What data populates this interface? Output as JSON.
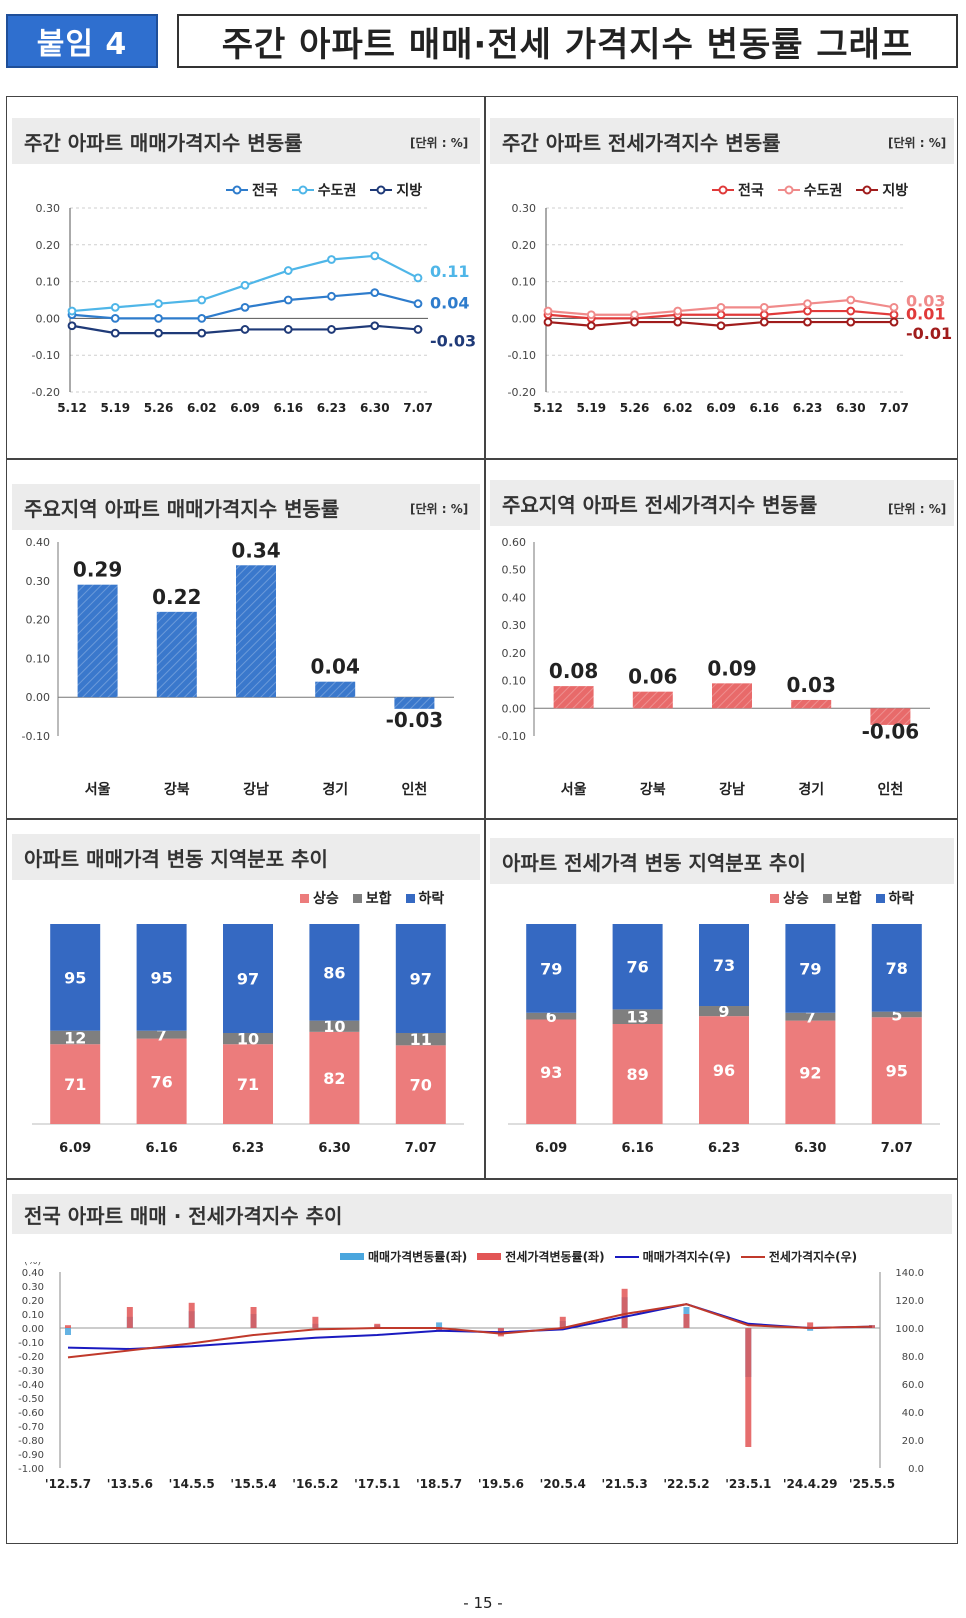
{
  "header": {
    "badge": "붙임 4",
    "title": "주간 아파트 매매·전세 가격지수 변동률 그래프"
  },
  "page_number": "- 15 -",
  "chart_data": [
    {
      "id": "weekly_sale",
      "type": "line",
      "title": "주간 아파트 매매가격지수 변동률",
      "unit": "[단위 : %]",
      "x": [
        "5.12",
        "5.19",
        "5.26",
        "6.02",
        "6.09",
        "6.16",
        "6.23",
        "6.30",
        "7.07"
      ],
      "ylim": [
        -0.2,
        0.3
      ],
      "yticks": [
        "0.30",
        "0.20",
        "0.10",
        "0.00",
        "-0.10",
        "-0.20"
      ],
      "series": [
        {
          "name": "전국",
          "color": "#2e7ccc",
          "values": [
            0.01,
            0.0,
            0.0,
            0.0,
            0.03,
            0.05,
            0.06,
            0.07,
            0.04
          ],
          "end_label": "0.04"
        },
        {
          "name": "수도권",
          "color": "#4fb6e8",
          "values": [
            0.02,
            0.03,
            0.04,
            0.05,
            0.09,
            0.13,
            0.16,
            0.17,
            0.11
          ],
          "end_label": "0.11"
        },
        {
          "name": "지방",
          "color": "#1f3a78",
          "values": [
            -0.02,
            -0.04,
            -0.04,
            -0.04,
            -0.03,
            -0.03,
            -0.03,
            -0.02,
            -0.03
          ],
          "end_label": "-0.03"
        }
      ]
    },
    {
      "id": "weekly_jeonse",
      "type": "line",
      "title": "주간 아파트 전세가격지수 변동률",
      "unit": "[단위 : %]",
      "x": [
        "5.12",
        "5.19",
        "5.26",
        "6.02",
        "6.09",
        "6.16",
        "6.23",
        "6.30",
        "7.07"
      ],
      "ylim": [
        -0.2,
        0.3
      ],
      "yticks": [
        "0.30",
        "0.20",
        "0.10",
        "0.00",
        "-0.10",
        "-0.20"
      ],
      "series": [
        {
          "name": "전국",
          "color": "#e03a3a",
          "values": [
            0.01,
            0.0,
            0.0,
            0.01,
            0.01,
            0.01,
            0.02,
            0.02,
            0.01
          ],
          "end_label": "0.01"
        },
        {
          "name": "수도권",
          "color": "#f08a8a",
          "values": [
            0.02,
            0.01,
            0.01,
            0.02,
            0.03,
            0.03,
            0.04,
            0.05,
            0.03
          ],
          "end_label": "0.03"
        },
        {
          "name": "지방",
          "color": "#a01c1c",
          "values": [
            -0.01,
            -0.02,
            -0.01,
            -0.01,
            -0.02,
            -0.01,
            -0.01,
            -0.01,
            -0.01
          ],
          "end_label": "-0.01"
        }
      ]
    },
    {
      "id": "region_sale",
      "type": "bar",
      "title": "주요지역 아파트 매매가격지수 변동률",
      "unit": "[단위 : %]",
      "categories": [
        "서울",
        "강북",
        "강남",
        "경기",
        "인천"
      ],
      "values": [
        0.29,
        0.22,
        0.34,
        0.04,
        -0.03
      ],
      "labels": [
        "0.29",
        "0.22",
        "0.34",
        "0.04",
        "-0.03"
      ],
      "ylim": [
        -0.1,
        0.4
      ],
      "yticks": [
        "0.40",
        "0.30",
        "0.20",
        "0.10",
        "0.00",
        "-0.10"
      ],
      "color": "#3a78cc"
    },
    {
      "id": "region_jeonse",
      "type": "bar",
      "title": "주요지역 아파트 전세가격지수 변동률",
      "unit": "[단위 : %]",
      "categories": [
        "서울",
        "강북",
        "강남",
        "경기",
        "인천"
      ],
      "values": [
        0.08,
        0.06,
        0.09,
        0.03,
        -0.06
      ],
      "labels": [
        "0.08",
        "0.06",
        "0.09",
        "0.03",
        "-0.06"
      ],
      "ylim": [
        -0.1,
        0.6
      ],
      "yticks": [
        "0.60",
        "0.50",
        "0.40",
        "0.30",
        "0.20",
        "0.10",
        "0.00",
        "-0.10"
      ],
      "color": "#e86a6a"
    },
    {
      "id": "dist_sale",
      "type": "bar",
      "stacked": true,
      "title": "아파트 매매가격 변동 지역분포 추이",
      "categories": [
        "6.09",
        "6.16",
        "6.23",
        "6.30",
        "7.07"
      ],
      "series": [
        {
          "name": "상승",
          "color": "#ec7c7c",
          "values": [
            71,
            76,
            71,
            82,
            70
          ]
        },
        {
          "name": "보합",
          "color": "#7f7f7f",
          "values": [
            12,
            7,
            10,
            10,
            11
          ]
        },
        {
          "name": "하락",
          "color": "#3569c2",
          "values": [
            95,
            95,
            97,
            86,
            97
          ]
        }
      ]
    },
    {
      "id": "dist_jeonse",
      "type": "bar",
      "stacked": true,
      "title": "아파트 전세가격 변동 지역분포 추이",
      "categories": [
        "6.09",
        "6.16",
        "6.23",
        "6.30",
        "7.07"
      ],
      "series": [
        {
          "name": "상승",
          "color": "#ec7c7c",
          "values": [
            93,
            89,
            96,
            92,
            95
          ]
        },
        {
          "name": "보합",
          "color": "#7f7f7f",
          "values": [
            6,
            13,
            9,
            7,
            5
          ]
        },
        {
          "name": "하락",
          "color": "#3569c2",
          "values": [
            79,
            76,
            73,
            79,
            78
          ]
        }
      ]
    },
    {
      "id": "national_trend",
      "type": "line",
      "title": "전국 아파트 매매 · 전세가격지수 추이",
      "ylabel_left": "(%)",
      "x_ticks": [
        "'12.5.7",
        "'13.5.6",
        "'14.5.5",
        "'15.5.4",
        "'16.5.2",
        "'17.5.1",
        "'18.5.7",
        "'19.5.6",
        "'20.5.4",
        "'21.5.3",
        "'22.5.2",
        "'23.5.1",
        "'24.4.29",
        "'25.5.5"
      ],
      "ylim_left": [
        -1.0,
        0.4
      ],
      "yticks_left": [
        "0.40",
        "0.30",
        "0.20",
        "0.10",
        "0.00",
        "-0.10",
        "-0.20",
        "-0.30",
        "-0.40",
        "-0.50",
        "-0.60",
        "-0.70",
        "-0.80",
        "-0.90",
        "-1.00"
      ],
      "ylim_right": [
        0,
        140
      ],
      "yticks_right": [
        "140.0",
        "120.0",
        "100.0",
        "80.0",
        "60.0",
        "40.0",
        "20.0",
        "0.0"
      ],
      "series": [
        {
          "name": "매매가격변동률(좌)",
          "kind": "bar",
          "axis": "left",
          "color": "#4aa6de",
          "values_per_tick": [
            -0.05,
            0.08,
            0.12,
            0.1,
            0.03,
            0.02,
            0.04,
            -0.02,
            0.05,
            0.22,
            0.15,
            -0.35,
            -0.02,
            0.02
          ]
        },
        {
          "name": "전세가격변동률(좌)",
          "kind": "bar",
          "axis": "left",
          "color": "#e25555",
          "values_per_tick": [
            0.02,
            0.15,
            0.18,
            0.15,
            0.08,
            0.03,
            -0.02,
            -0.06,
            0.08,
            0.28,
            0.1,
            -0.85,
            0.04,
            0.02
          ]
        },
        {
          "name": "매매가격지수(우)",
          "kind": "line",
          "axis": "right",
          "color": "#1a1ac0",
          "values_per_tick": [
            86,
            85,
            87,
            90,
            93,
            95,
            98,
            97,
            99,
            108,
            117,
            103,
            100,
            101
          ]
        },
        {
          "name": "전세가격지수(우)",
          "kind": "line",
          "axis": "right",
          "color": "#c0392b",
          "values_per_tick": [
            79,
            84,
            89,
            95,
            99,
            100,
            100,
            96,
            100,
            110,
            117,
            102,
            100,
            101
          ]
        }
      ]
    }
  ]
}
